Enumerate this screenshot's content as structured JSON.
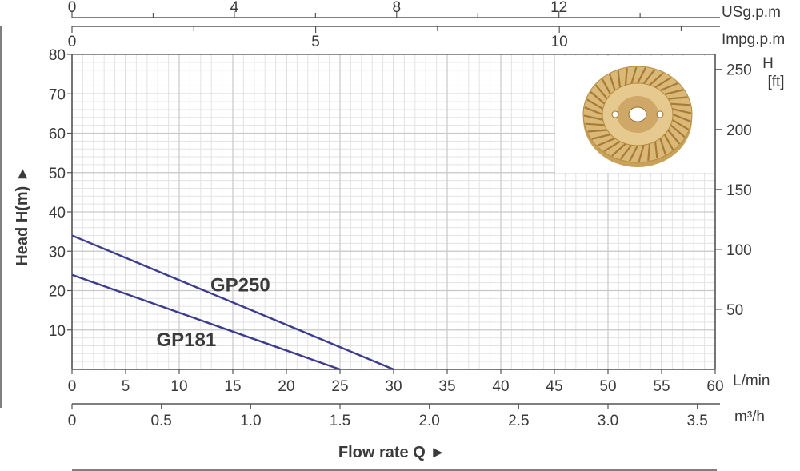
{
  "chart_data": {
    "type": "line",
    "xlabel": "Flow rate Q ►",
    "ylabel": "Head H(m) ►",
    "x_unit": "L/min",
    "xlim": [
      0,
      60
    ],
    "ylim": [
      0,
      80
    ],
    "x_ticks": [
      "0",
      "5",
      "10",
      "15",
      "20",
      "25",
      "30",
      "35",
      "40",
      "45",
      "50",
      "55",
      "60"
    ],
    "y_ticks": [
      "10",
      "20",
      "30",
      "40",
      "50",
      "60",
      "70",
      "80"
    ],
    "secondary_axes": {
      "usgpm": {
        "unit": "USg.p.m",
        "ticks": [
          "0",
          "4",
          "8",
          "12"
        ],
        "values": [
          0,
          4,
          8,
          12
        ],
        "minor_values": [
          2,
          6,
          10,
          14
        ]
      },
      "impgpm": {
        "unit": "Impg.p.m",
        "ticks": [
          "0",
          "5",
          "10"
        ],
        "values": [
          0,
          5,
          10
        ],
        "minor_values": [
          2.5,
          7.5,
          12.5
        ]
      },
      "feet": {
        "unit_line1": "H",
        "unit_line2": "[ft]",
        "ticks": [
          "50",
          "100",
          "150",
          "200",
          "250"
        ],
        "values": [
          50,
          100,
          150,
          200,
          250
        ]
      },
      "m3h": {
        "unit": "m³/h",
        "ticks": [
          "0",
          "0.5",
          "1.0",
          "1.5",
          "2.0",
          "2.5",
          "3.0",
          "3.5"
        ],
        "values": [
          0,
          0.5,
          1.0,
          1.5,
          2.0,
          2.5,
          3.0,
          3.5
        ]
      }
    },
    "series": [
      {
        "name": "GP250",
        "x": [
          0,
          30
        ],
        "y": [
          34,
          0
        ],
        "color": "#3b3b8f"
      },
      {
        "name": "GP181",
        "x": [
          0,
          25
        ],
        "y": [
          24,
          0
        ],
        "color": "#3b3b8f"
      }
    ],
    "grid": true,
    "inset_image": "brass-impeller"
  }
}
